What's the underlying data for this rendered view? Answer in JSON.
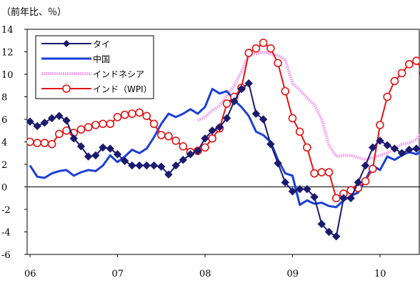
{
  "chart_data": {
    "type": "line",
    "unit_label": "（前年比、％）",
    "title": "",
    "xlabel": "",
    "ylabel": "",
    "ylim": [
      -6,
      14
    ],
    "yticks": [
      -6,
      -4,
      -2,
      0,
      2,
      4,
      6,
      8,
      10,
      12,
      14
    ],
    "xlim": [
      2006.0,
      2010.75
    ],
    "xticks": [
      {
        "label": "06",
        "x": 2006
      },
      {
        "label": "07",
        "x": 2007
      },
      {
        "label": "08",
        "x": 2008
      },
      {
        "label": "09",
        "x": 2009
      },
      {
        "label": "10",
        "x": 2010
      }
    ],
    "grid": false,
    "legend_position": "top-left",
    "series": [
      {
        "name": "タイ",
        "color": "#1a1a6e",
        "marker": "diamond",
        "line": "solid",
        "x": [
          2006.0,
          2006.0833,
          2006.1667,
          2006.25,
          2006.3333,
          2006.4167,
          2006.5,
          2006.5833,
          2006.6667,
          2006.75,
          2006.8333,
          2006.9167,
          2007.0,
          2007.0833,
          2007.1667,
          2007.25,
          2007.3333,
          2007.4167,
          2007.5,
          2007.5833,
          2007.6667,
          2007.75,
          2007.8333,
          2007.9167,
          2008.0,
          2008.0833,
          2008.1667,
          2008.25,
          2008.3333,
          2008.4167,
          2008.5,
          2008.5833,
          2008.6667,
          2008.75,
          2008.8333,
          2008.9167,
          2009.0,
          2009.0833,
          2009.1667,
          2009.25,
          2009.3333,
          2009.4167,
          2009.5,
          2009.5833,
          2009.6667,
          2009.75,
          2009.8333,
          2009.9167,
          2010.0,
          2010.0833,
          2010.1667,
          2010.25,
          2010.3333,
          2010.4167,
          2010.5,
          2010.5833,
          2010.6667,
          2010.75
        ],
        "values": [
          5.8,
          5.4,
          5.7,
          6.1,
          6.3,
          5.9,
          4.3,
          3.6,
          2.7,
          2.8,
          3.5,
          3.4,
          2.9,
          2.3,
          1.9,
          1.9,
          1.9,
          1.9,
          1.8,
          1.1,
          1.9,
          2.4,
          2.9,
          3.2,
          4.3,
          5.0,
          5.3,
          6.1,
          7.6,
          8.7,
          9.2,
          6.5,
          6.0,
          3.8,
          2.1,
          0.4,
          -0.4,
          -0.2,
          -0.2,
          -0.9,
          -3.3,
          -4.0,
          -4.4,
          -1.0,
          -1.0,
          0.4,
          1.9,
          3.5,
          4.1,
          3.7,
          3.4,
          3.0,
          3.3,
          3.4,
          3.3,
          3.0,
          3.1,
          3.2
        ]
      },
      {
        "name": "中国",
        "color": "#1a3fd8",
        "marker": "none",
        "line": "solid",
        "x": [
          2006.0,
          2006.0833,
          2006.1667,
          2006.25,
          2006.3333,
          2006.4167,
          2006.5,
          2006.5833,
          2006.6667,
          2006.75,
          2006.8333,
          2006.9167,
          2007.0,
          2007.0833,
          2007.1667,
          2007.25,
          2007.3333,
          2007.4167,
          2007.5,
          2007.5833,
          2007.6667,
          2007.75,
          2007.8333,
          2007.9167,
          2008.0,
          2008.0833,
          2008.1667,
          2008.25,
          2008.3333,
          2008.4167,
          2008.5,
          2008.5833,
          2008.6667,
          2008.75,
          2008.8333,
          2008.9167,
          2009.0,
          2009.0833,
          2009.1667,
          2009.25,
          2009.3333,
          2009.4167,
          2009.5,
          2009.5833,
          2009.6667,
          2009.75,
          2009.8333,
          2009.9167,
          2010.0,
          2010.0833,
          2010.1667,
          2010.25,
          2010.3333,
          2010.4167,
          2010.5,
          2010.5833,
          2010.6667,
          2010.75
        ],
        "values": [
          1.9,
          0.9,
          0.8,
          1.2,
          1.4,
          1.5,
          1.0,
          1.3,
          1.5,
          1.4,
          1.9,
          2.8,
          2.2,
          2.7,
          3.3,
          3.0,
          3.4,
          4.4,
          5.6,
          6.5,
          6.2,
          6.5,
          6.9,
          6.5,
          7.1,
          8.7,
          8.3,
          8.5,
          7.7,
          7.1,
          6.3,
          4.9,
          4.6,
          4.0,
          2.4,
          1.2,
          1.0,
          -1.6,
          -1.2,
          -1.5,
          -1.4,
          -1.7,
          -1.8,
          -1.2,
          -0.8,
          -0.5,
          0.6,
          1.9,
          1.5,
          2.7,
          2.4,
          2.8,
          3.1,
          2.9,
          3.3,
          3.5,
          3.6,
          3.0
        ]
      },
      {
        "name": "インドネシア",
        "color": "#f4a8f0",
        "marker": "none",
        "line": "dotted",
        "x": [
          2007.9167,
          2008.0,
          2008.0833,
          2008.1667,
          2008.25,
          2008.3333,
          2008.4167,
          2008.5,
          2008.5833,
          2008.6667,
          2008.75,
          2008.8333,
          2008.9167,
          2009.0,
          2009.0833,
          2009.1667,
          2009.25,
          2009.3333,
          2009.4167,
          2009.5,
          2009.5833,
          2009.6667,
          2009.75,
          2009.8333,
          2009.9167,
          2010.0,
          2010.0833,
          2010.1667,
          2010.25,
          2010.3333,
          2010.4167,
          2010.5,
          2010.5833,
          2010.6667,
          2010.75
        ],
        "values": [
          5.9,
          6.2,
          6.8,
          7.2,
          8.1,
          9.0,
          10.2,
          11.9,
          11.8,
          12.0,
          11.8,
          11.7,
          11.3,
          9.2,
          8.6,
          7.9,
          7.3,
          6.0,
          3.7,
          2.7,
          2.8,
          2.8,
          2.6,
          2.4,
          2.6,
          2.8,
          3.0,
          3.4,
          3.8,
          3.9,
          4.2,
          5.1,
          5.7,
          6.0,
          6.2
        ]
      },
      {
        "name": "インド（WPI）",
        "color": "#e01515",
        "marker": "circle",
        "line": "solid",
        "x": [
          2006.0,
          2006.0833,
          2006.1667,
          2006.25,
          2006.3333,
          2006.4167,
          2006.5,
          2006.5833,
          2006.6667,
          2006.75,
          2006.8333,
          2006.9167,
          2007.0,
          2007.0833,
          2007.1667,
          2007.25,
          2007.3333,
          2007.4167,
          2007.5,
          2007.5833,
          2007.6667,
          2007.75,
          2007.8333,
          2007.9167,
          2008.0,
          2008.0833,
          2008.1667,
          2008.25,
          2008.3333,
          2008.4167,
          2008.5,
          2008.5833,
          2008.6667,
          2008.75,
          2008.8333,
          2008.9167,
          2009.0,
          2009.0833,
          2009.1667,
          2009.25,
          2009.3333,
          2009.4167,
          2009.5,
          2009.5833,
          2009.6667,
          2009.75,
          2009.8333,
          2009.9167,
          2010.0,
          2010.0833,
          2010.1667,
          2010.25,
          2010.3333,
          2010.4167,
          2010.5,
          2010.5833,
          2010.6667,
          2010.75
        ],
        "values": [
          4.0,
          3.9,
          3.9,
          3.8,
          4.7,
          5.0,
          4.8,
          5.1,
          5.3,
          5.5,
          5.6,
          5.6,
          6.2,
          6.4,
          6.5,
          6.6,
          6.3,
          5.6,
          4.6,
          4.5,
          4.1,
          3.6,
          3.1,
          3.2,
          3.5,
          4.3,
          5.2,
          7.4,
          8.0,
          8.8,
          11.9,
          12.3,
          12.8,
          12.3,
          11.0,
          8.5,
          6.1,
          4.9,
          3.5,
          1.2,
          1.3,
          1.3,
          -1.0,
          -0.6,
          -0.3,
          -0.1,
          0.5,
          1.6,
          5.5,
          8.0,
          9.4,
          10.1,
          10.9,
          11.2,
          10.1,
          10.4,
          10.5,
          10.6
        ]
      }
    ]
  }
}
